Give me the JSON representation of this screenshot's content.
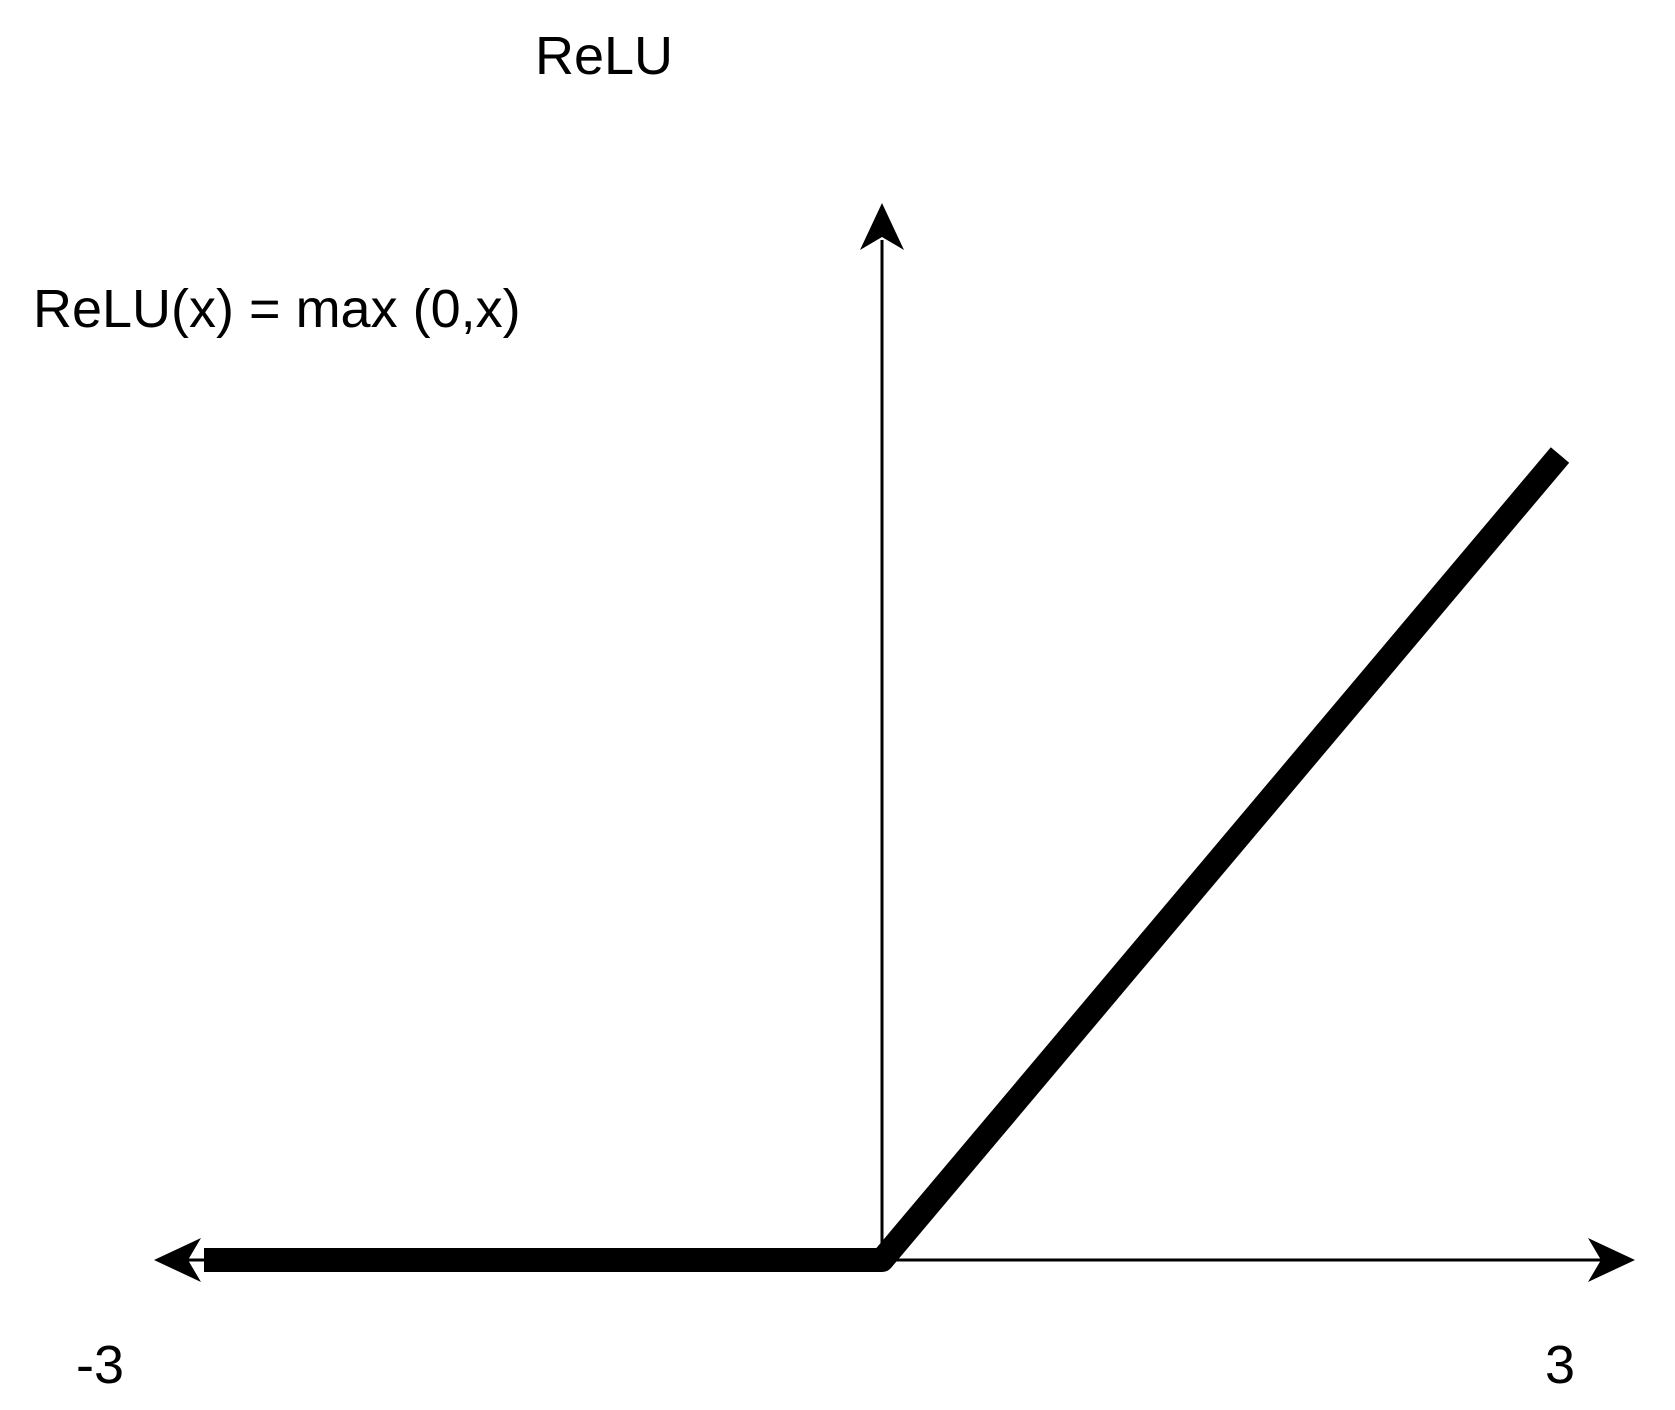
{
  "chart_data": {
    "type": "line",
    "title": "ReLU",
    "annotation": "ReLU(x) = max (0,x)",
    "xlim": [
      -3,
      3
    ],
    "ylim": [
      0,
      3
    ],
    "xticks": [
      {
        "value": -3,
        "label": "-3"
      },
      {
        "value": 3,
        "label": "3"
      }
    ],
    "grid": false,
    "series": [
      {
        "x": [
          -3,
          0,
          3
        ],
        "y": [
          0,
          0,
          3
        ]
      }
    ],
    "colors": {
      "line": "#000000",
      "axis": "#000000",
      "text": "#000000",
      "background": "#ffffff"
    }
  }
}
